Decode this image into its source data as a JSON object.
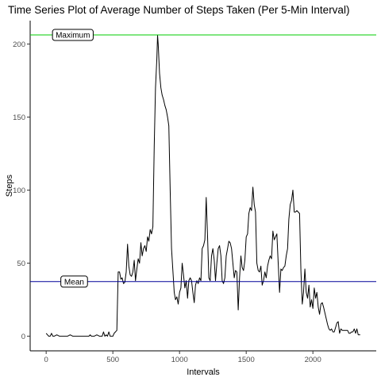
{
  "chart_data": {
    "type": "line",
    "title": "Time Series Plot of Average Number of Steps Taken (Per 5-Min Interval)",
    "xlabel": "Intervals",
    "ylabel": "Steps",
    "xlim": [
      -120,
      2475
    ],
    "ylim": [
      -10,
      216
    ],
    "xticks": [
      0,
      500,
      1000,
      1500,
      2000
    ],
    "yticks": [
      0,
      50,
      100,
      150,
      200
    ],
    "grid": false,
    "series": [
      {
        "color": "#000000",
        "points": [
          [
            0,
            2
          ],
          [
            10,
            1
          ],
          [
            20,
            0
          ],
          [
            30,
            0
          ],
          [
            40,
            2
          ],
          [
            50,
            0
          ],
          [
            60,
            0
          ],
          [
            80,
            1
          ],
          [
            100,
            0
          ],
          [
            120,
            0
          ],
          [
            140,
            0
          ],
          [
            160,
            0
          ],
          [
            180,
            1
          ],
          [
            200,
            0
          ],
          [
            220,
            0
          ],
          [
            240,
            0
          ],
          [
            260,
            0
          ],
          [
            280,
            0
          ],
          [
            300,
            0
          ],
          [
            320,
            0
          ],
          [
            330,
            1
          ],
          [
            340,
            0
          ],
          [
            360,
            0
          ],
          [
            380,
            1
          ],
          [
            400,
            0
          ],
          [
            420,
            0
          ],
          [
            430,
            3
          ],
          [
            440,
            0
          ],
          [
            450,
            1
          ],
          [
            460,
            0
          ],
          [
            470,
            3
          ],
          [
            480,
            0
          ],
          [
            490,
            0
          ],
          [
            500,
            0
          ],
          [
            510,
            2
          ],
          [
            520,
            3
          ],
          [
            530,
            4
          ],
          [
            540,
            44
          ],
          [
            550,
            44
          ],
          [
            560,
            39
          ],
          [
            570,
            40
          ],
          [
            580,
            36
          ],
          [
            590,
            37
          ],
          [
            600,
            44
          ],
          [
            610,
            63
          ],
          [
            620,
            48
          ],
          [
            630,
            42
          ],
          [
            640,
            41
          ],
          [
            650,
            44
          ],
          [
            660,
            52
          ],
          [
            670,
            38
          ],
          [
            680,
            46
          ],
          [
            690,
            53
          ],
          [
            700,
            50
          ],
          [
            710,
            64
          ],
          [
            720,
            55
          ],
          [
            730,
            60
          ],
          [
            740,
            62
          ],
          [
            750,
            58
          ],
          [
            760,
            68
          ],
          [
            770,
            65
          ],
          [
            780,
            73
          ],
          [
            790,
            70
          ],
          [
            800,
            75
          ],
          [
            810,
            130
          ],
          [
            820,
            170
          ],
          [
            830,
            190
          ],
          [
            835,
            206
          ],
          [
            840,
            200
          ],
          [
            850,
            180
          ],
          [
            860,
            170
          ],
          [
            870,
            165
          ],
          [
            880,
            162
          ],
          [
            890,
            158
          ],
          [
            900,
            155
          ],
          [
            910,
            150
          ],
          [
            920,
            144
          ],
          [
            930,
            100
          ],
          [
            940,
            60
          ],
          [
            950,
            45
          ],
          [
            960,
            30
          ],
          [
            970,
            25
          ],
          [
            980,
            27
          ],
          [
            990,
            22
          ],
          [
            1000,
            30
          ],
          [
            1010,
            33
          ],
          [
            1020,
            50
          ],
          [
            1030,
            42
          ],
          [
            1040,
            33
          ],
          [
            1050,
            38
          ],
          [
            1060,
            26
          ],
          [
            1070,
            38
          ],
          [
            1080,
            40
          ],
          [
            1090,
            38
          ],
          [
            1100,
            30
          ],
          [
            1110,
            23
          ],
          [
            1120,
            35
          ],
          [
            1130,
            38
          ],
          [
            1140,
            36
          ],
          [
            1150,
            40
          ],
          [
            1160,
            38
          ],
          [
            1170,
            60
          ],
          [
            1180,
            62
          ],
          [
            1190,
            66
          ],
          [
            1200,
            95
          ],
          [
            1210,
            68
          ],
          [
            1220,
            40
          ],
          [
            1230,
            38
          ],
          [
            1240,
            55
          ],
          [
            1250,
            60
          ],
          [
            1260,
            52
          ],
          [
            1270,
            38
          ],
          [
            1280,
            50
          ],
          [
            1290,
            60
          ],
          [
            1300,
            62
          ],
          [
            1310,
            55
          ],
          [
            1320,
            38
          ],
          [
            1330,
            36
          ],
          [
            1340,
            40
          ],
          [
            1350,
            55
          ],
          [
            1360,
            60
          ],
          [
            1370,
            65
          ],
          [
            1380,
            64
          ],
          [
            1390,
            60
          ],
          [
            1400,
            50
          ],
          [
            1410,
            40
          ],
          [
            1420,
            45
          ],
          [
            1430,
            44
          ],
          [
            1440,
            18
          ],
          [
            1450,
            40
          ],
          [
            1460,
            55
          ],
          [
            1470,
            47
          ],
          [
            1480,
            45
          ],
          [
            1490,
            52
          ],
          [
            1500,
            68
          ],
          [
            1510,
            70
          ],
          [
            1520,
            84
          ],
          [
            1530,
            88
          ],
          [
            1540,
            86
          ],
          [
            1550,
            102
          ],
          [
            1560,
            90
          ],
          [
            1570,
            85
          ],
          [
            1580,
            50
          ],
          [
            1590,
            45
          ],
          [
            1600,
            44
          ],
          [
            1610,
            48
          ],
          [
            1620,
            35
          ],
          [
            1630,
            38
          ],
          [
            1640,
            44
          ],
          [
            1650,
            40
          ],
          [
            1660,
            48
          ],
          [
            1670,
            52
          ],
          [
            1680,
            55
          ],
          [
            1690,
            53
          ],
          [
            1700,
            72
          ],
          [
            1710,
            66
          ],
          [
            1720,
            68
          ],
          [
            1730,
            70
          ],
          [
            1740,
            50
          ],
          [
            1750,
            30
          ],
          [
            1760,
            46
          ],
          [
            1770,
            45
          ],
          [
            1780,
            47
          ],
          [
            1790,
            48
          ],
          [
            1800,
            55
          ],
          [
            1810,
            60
          ],
          [
            1820,
            80
          ],
          [
            1830,
            90
          ],
          [
            1840,
            93
          ],
          [
            1850,
            100
          ],
          [
            1860,
            85
          ],
          [
            1870,
            85
          ],
          [
            1880,
            86
          ],
          [
            1890,
            85
          ],
          [
            1900,
            84
          ],
          [
            1910,
            45
          ],
          [
            1920,
            22
          ],
          [
            1930,
            30
          ],
          [
            1940,
            46
          ],
          [
            1950,
            30
          ],
          [
            1960,
            26
          ],
          [
            1970,
            35
          ],
          [
            1980,
            20
          ],
          [
            1990,
            25
          ],
          [
            2000,
            19
          ],
          [
            2010,
            33
          ],
          [
            2020,
            26
          ],
          [
            2030,
            30
          ],
          [
            2040,
            20
          ],
          [
            2050,
            15
          ],
          [
            2060,
            22
          ],
          [
            2070,
            23
          ],
          [
            2080,
            20
          ],
          [
            2090,
            16
          ],
          [
            2100,
            12
          ],
          [
            2110,
            8
          ],
          [
            2120,
            5
          ],
          [
            2130,
            4
          ],
          [
            2140,
            5
          ],
          [
            2150,
            3
          ],
          [
            2160,
            3
          ],
          [
            2170,
            6
          ],
          [
            2180,
            9
          ],
          [
            2190,
            10
          ],
          [
            2200,
            2
          ],
          [
            2210,
            5
          ],
          [
            2220,
            4
          ],
          [
            2230,
            4
          ],
          [
            2240,
            4
          ],
          [
            2250,
            4
          ],
          [
            2260,
            4
          ],
          [
            2270,
            2
          ],
          [
            2280,
            2
          ],
          [
            2290,
            3
          ],
          [
            2300,
            3
          ],
          [
            2310,
            5
          ],
          [
            2320,
            2
          ],
          [
            2330,
            5
          ],
          [
            2340,
            1
          ],
          [
            2350,
            1
          ],
          [
            2355,
            1
          ]
        ]
      }
    ],
    "reference_lines": [
      {
        "label": "Maximum",
        "value": 206.2,
        "color": "#00cc00",
        "label_x": 200
      },
      {
        "label": "Mean",
        "value": 37.4,
        "color": "#000099",
        "label_x": 210
      }
    ]
  }
}
